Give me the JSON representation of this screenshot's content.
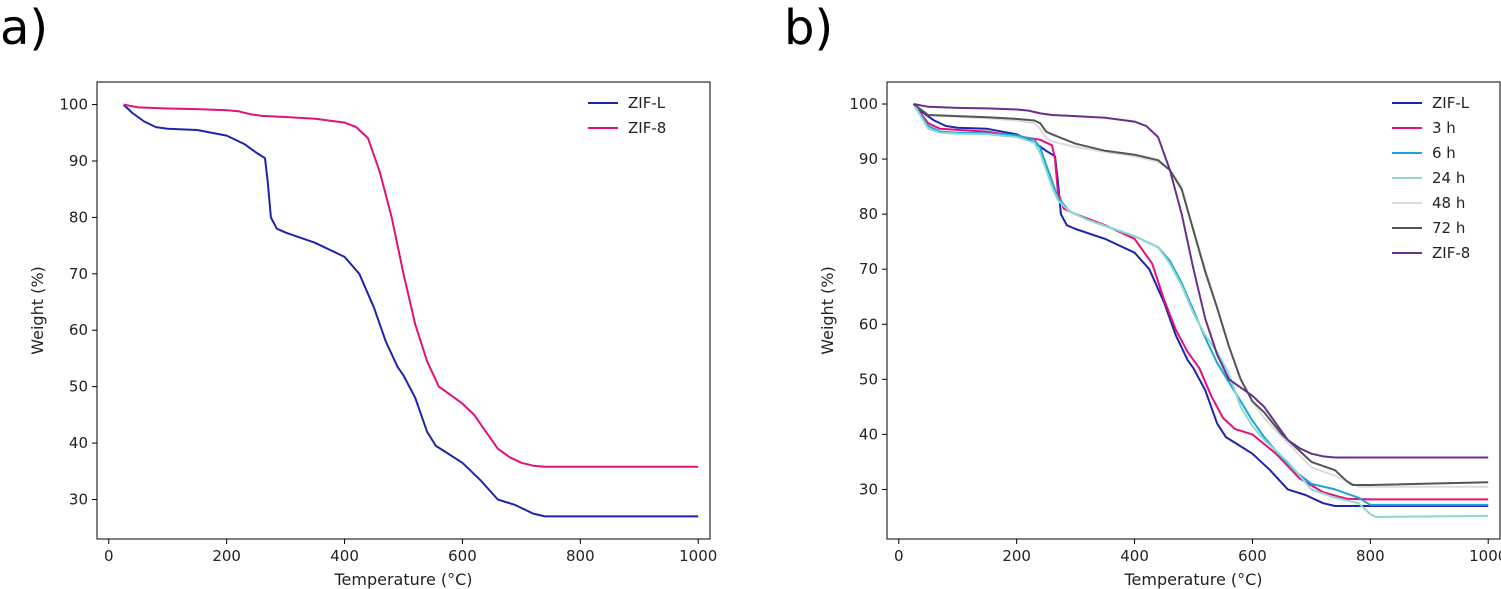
{
  "panel_labels": {
    "a": "a)",
    "b": "b)"
  },
  "colors": {
    "ZIF-L": "#1f24a8",
    "ZIF-8 (a)": "#e2117a",
    "3 h": "#e2117a",
    "6 h": "#1aa7d8",
    "24 h": "#8fd8d0",
    "48 h": "#dcdcdc",
    "72 h": "#555555",
    "ZIF-8 (b)": "#6a2e8c"
  },
  "chart_data": [
    {
      "type": "line",
      "panel": "a",
      "title": "",
      "xlabel": "Temperature (°C)",
      "ylabel": "Weight (%)",
      "xlim": [
        -20,
        1020
      ],
      "ylim": [
        23,
        104
      ],
      "xticks": [
        0,
        200,
        400,
        600,
        800,
        1000
      ],
      "yticks": [
        30,
        40,
        50,
        60,
        70,
        80,
        90,
        100
      ],
      "legend_position": "top-right",
      "series": [
        {
          "name": "ZIF-L",
          "color_key": "ZIF-L",
          "x": [
            25,
            40,
            60,
            80,
            100,
            150,
            200,
            230,
            250,
            265,
            270,
            275,
            285,
            300,
            350,
            400,
            425,
            450,
            470,
            490,
            500,
            520,
            540,
            555,
            570,
            600,
            630,
            660,
            690,
            720,
            740,
            760,
            800,
            1000
          ],
          "y": [
            100,
            98.5,
            97,
            96,
            95.7,
            95.5,
            94.5,
            93,
            91.5,
            90.5,
            86,
            80,
            78,
            77.3,
            75.5,
            73,
            70,
            64,
            58,
            53.5,
            52,
            48,
            42,
            39.5,
            38.5,
            36.5,
            33.5,
            30,
            29,
            27.5,
            27,
            27,
            27,
            27
          ]
        },
        {
          "name": "ZIF-8",
          "color_key": "ZIF-8 (a)",
          "x": [
            25,
            50,
            100,
            150,
            200,
            220,
            240,
            260,
            300,
            350,
            400,
            420,
            440,
            460,
            480,
            500,
            520,
            540,
            560,
            580,
            600,
            620,
            640,
            660,
            680,
            700,
            720,
            740,
            800,
            1000
          ],
          "y": [
            100,
            99.5,
            99.3,
            99.2,
            99,
            98.8,
            98.3,
            98,
            97.8,
            97.5,
            96.8,
            96,
            94,
            88,
            80,
            70,
            61,
            54.5,
            50,
            48.5,
            47,
            45,
            42,
            39,
            37.5,
            36.5,
            36,
            35.8,
            35.8,
            35.8
          ]
        }
      ]
    },
    {
      "type": "line",
      "panel": "b",
      "title": "",
      "xlabel": "Temperature (°C)",
      "ylabel": "Weight (%)",
      "xlim": [
        -20,
        1020
      ],
      "ylim": [
        21,
        104
      ],
      "xticks": [
        0,
        200,
        400,
        600,
        800,
        1000
      ],
      "yticks": [
        30,
        40,
        50,
        60,
        70,
        80,
        90,
        100
      ],
      "legend_position": "top-right",
      "series": [
        {
          "name": "ZIF-L",
          "color_key": "ZIF-L",
          "x": [
            25,
            40,
            60,
            80,
            100,
            150,
            200,
            230,
            250,
            265,
            270,
            275,
            285,
            300,
            350,
            400,
            425,
            450,
            470,
            490,
            500,
            520,
            540,
            555,
            570,
            600,
            630,
            660,
            690,
            720,
            740,
            760,
            800,
            1000
          ],
          "y": [
            100,
            98.5,
            97,
            96,
            95.7,
            95.5,
            94.5,
            93,
            91.5,
            90.5,
            86,
            80,
            78,
            77.3,
            75.5,
            73,
            70,
            64,
            58,
            53.5,
            52,
            48,
            42,
            39.5,
            38.5,
            36.5,
            33.5,
            30,
            29,
            27.5,
            27,
            27,
            27,
            27
          ]
        },
        {
          "name": "3 h",
          "color_key": "3 h",
          "x": [
            25,
            50,
            70,
            100,
            150,
            200,
            240,
            260,
            265,
            270,
            280,
            300,
            350,
            400,
            430,
            450,
            470,
            490,
            510,
            530,
            550,
            570,
            600,
            640,
            680,
            720,
            760,
            800,
            1000
          ],
          "y": [
            100,
            96.5,
            95.5,
            95.3,
            95,
            94.2,
            93.5,
            92.5,
            90,
            84,
            81,
            80,
            78,
            75.5,
            71,
            64.5,
            59,
            55,
            52,
            47,
            43,
            41,
            40,
            36.5,
            32,
            29.5,
            28.3,
            28.2,
            28.2
          ]
        },
        {
          "name": "6 h",
          "color_key": "6 h",
          "x": [
            25,
            50,
            70,
            100,
            150,
            200,
            230,
            240,
            250,
            260,
            270,
            290,
            320,
            360,
            400,
            440,
            460,
            480,
            500,
            520,
            540,
            560,
            580,
            600,
            620,
            640,
            670,
            700,
            740,
            780,
            800,
            1000
          ],
          "y": [
            100,
            96,
            95,
            94.8,
            94.7,
            94.3,
            93.5,
            92,
            89,
            86,
            83,
            80.5,
            79,
            77.5,
            76,
            74,
            71.5,
            67.5,
            62.5,
            57.5,
            53,
            49.5,
            46,
            42.5,
            39.5,
            37,
            33.5,
            31,
            30,
            28.5,
            27.2,
            27.2
          ]
        },
        {
          "name": "24 h",
          "color_key": "24 h",
          "x": [
            25,
            50,
            70,
            100,
            150,
            200,
            230,
            240,
            250,
            260,
            270,
            290,
            320,
            360,
            400,
            440,
            460,
            480,
            500,
            520,
            540,
            560,
            580,
            600,
            620,
            660,
            700,
            740,
            780,
            800,
            810,
            1000
          ],
          "y": [
            100,
            95.5,
            94.8,
            94.6,
            94.5,
            94,
            93,
            91,
            88,
            85,
            82.5,
            80.5,
            79,
            77.5,
            76,
            74,
            71,
            67,
            62,
            58,
            55,
            51,
            45,
            41.5,
            39,
            35,
            30,
            28.5,
            27.5,
            25.5,
            25,
            25.2
          ]
        },
        {
          "name": "48 h",
          "color_key": "48 h",
          "x": [
            25,
            50,
            100,
            150,
            200,
            230,
            240,
            250,
            260,
            300,
            350,
            400,
            440,
            460,
            480,
            500,
            520,
            540,
            560,
            580,
            600,
            620,
            650,
            700,
            740,
            780,
            800,
            1000
          ],
          "y": [
            100,
            98,
            97.7,
            97.4,
            97,
            96.5,
            95.5,
            93.8,
            93.2,
            92.2,
            91.3,
            90.5,
            89.5,
            88,
            85,
            77,
            70,
            63,
            56,
            50,
            46,
            43,
            39.5,
            34,
            32.5,
            30.5,
            30.5,
            30.5
          ]
        },
        {
          "name": "72 h",
          "color_key": "72 h",
          "x": [
            25,
            50,
            100,
            150,
            200,
            230,
            240,
            250,
            260,
            300,
            350,
            400,
            440,
            460,
            480,
            500,
            520,
            540,
            560,
            580,
            600,
            620,
            650,
            700,
            740,
            760,
            770,
            800,
            1000
          ],
          "y": [
            100,
            98,
            97.8,
            97.6,
            97.3,
            97,
            96.5,
            95,
            94.5,
            92.8,
            91.5,
            90.8,
            89.8,
            88,
            84.5,
            77,
            69.5,
            63,
            56,
            50,
            46,
            44,
            40,
            35,
            33.5,
            31.5,
            30.8,
            30.8,
            31.3
          ]
        },
        {
          "name": "ZIF-8",
          "color_key": "ZIF-8 (b)",
          "x": [
            25,
            50,
            100,
            150,
            200,
            220,
            240,
            260,
            300,
            350,
            400,
            420,
            440,
            460,
            480,
            500,
            520,
            540,
            560,
            580,
            600,
            620,
            640,
            660,
            680,
            700,
            720,
            740,
            800,
            1000
          ],
          "y": [
            100,
            99.5,
            99.3,
            99.2,
            99,
            98.8,
            98.3,
            98,
            97.8,
            97.5,
            96.8,
            96,
            94,
            88,
            80,
            70,
            61,
            54.5,
            50,
            48.5,
            47,
            45,
            42,
            39,
            37.5,
            36.5,
            36,
            35.8,
            35.8,
            35.8
          ]
        }
      ]
    }
  ]
}
